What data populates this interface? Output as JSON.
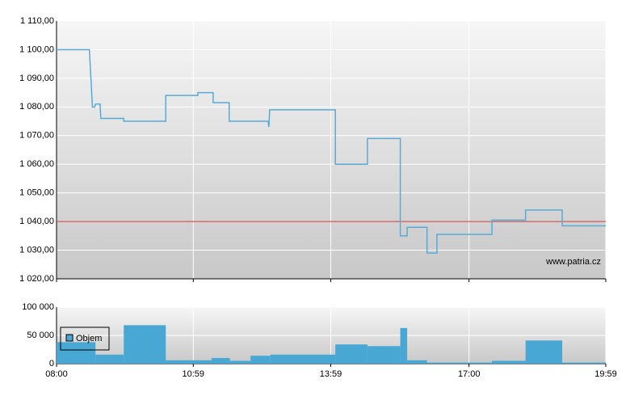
{
  "chart_data": [
    {
      "type": "line",
      "watermark": "www.patria.cz",
      "x": [
        0,
        43,
        47,
        50,
        51,
        57,
        58,
        88,
        88,
        143,
        143,
        185,
        185,
        205,
        205,
        226,
        226,
        277,
        278,
        279,
        365,
        365,
        407,
        407,
        450,
        450,
        459,
        459,
        485,
        485,
        498,
        498,
        570,
        570,
        614,
        614,
        662,
        662,
        719
      ],
      "values": [
        1100,
        1100,
        1080,
        1080,
        1081,
        1081,
        1076,
        1076,
        1075,
        1075,
        1084,
        1084,
        1085,
        1085,
        1081.5,
        1081.5,
        1075,
        1075,
        1073,
        1079,
        1079,
        1060,
        1060,
        1069,
        1069,
        1035,
        1035,
        1038,
        1038,
        1029,
        1029,
        1035.5,
        1035.5,
        1040.5,
        1040.5,
        1044,
        1044,
        1038.5,
        1038.5
      ],
      "color": "#5aaad6",
      "reference_line": 1040,
      "reference_color": "#cc3333",
      "xlim": [
        0,
        719
      ],
      "ylim": [
        1020,
        1110
      ],
      "yticks": [
        {
          "value": 1020,
          "label": "1 020,00"
        },
        {
          "value": 1030,
          "label": "1 030,00"
        },
        {
          "value": 1040,
          "label": "1 040,00"
        },
        {
          "value": 1050,
          "label": "1 050,00"
        },
        {
          "value": 1060,
          "label": "1 060,00"
        },
        {
          "value": 1070,
          "label": "1 070,00"
        },
        {
          "value": 1080,
          "label": "1 080,00"
        },
        {
          "value": 1090,
          "label": "1 090,00"
        },
        {
          "value": 1100,
          "label": "1 100,00"
        },
        {
          "value": 1110,
          "label": "1 110,00"
        }
      ],
      "grid": true
    },
    {
      "type": "histogram",
      "bins": [
        0,
        51,
        88,
        143,
        203,
        227,
        254,
        280,
        365,
        407,
        450,
        459,
        485,
        570,
        614,
        662,
        719
      ],
      "series": [
        {
          "name": "Objem",
          "color": "#49a7d3",
          "values": [
            38000,
            16000,
            68000,
            6000,
            10000,
            5000,
            14000,
            16000,
            34000,
            31000,
            63000,
            6000,
            2000,
            5000,
            41000,
            2000
          ]
        }
      ],
      "xlim": [
        0,
        719
      ],
      "ylim": [
        0,
        100000
      ],
      "xticks": [
        {
          "value": 0,
          "label": "08:00"
        },
        {
          "value": 179,
          "label": "10:59"
        },
        {
          "value": 359,
          "label": "13:59"
        },
        {
          "value": 540,
          "label": "17:00"
        },
        {
          "value": 719,
          "label": "19:59"
        }
      ],
      "yticks": [
        0,
        {
          "value": 50000,
          "label": "50 000"
        },
        {
          "value": 100000,
          "label": "100 000"
        }
      ],
      "grid": true
    }
  ]
}
